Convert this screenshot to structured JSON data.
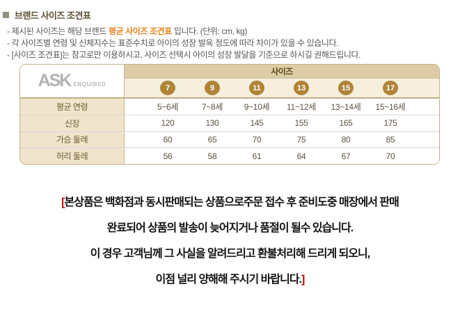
{
  "header": {
    "title": "브랜드 사이즈 조견표",
    "bullet1_pre": "- 제시된 사이즈는 해당 브랜드 ",
    "bullet1_highlight": "평균 사이즈 조견표",
    "bullet1_post": " 입니다.  (단위: cm, kg)",
    "bullet2": "- 각 사이즈별 연령 및 신체지수는 표준수치로 아이의 성장 발육 정도에 따라 차이가 있을 수 있습니다.",
    "bullet3": "- [사이즈 조견표]는 참고로만 이용하시고, 사이즈 선택시 아이의 성장 발달을 기준으로 하시길 권해드립니다."
  },
  "table": {
    "logo_main": "ASK",
    "logo_sub": "ENQUIRED",
    "size_header": "사이즈",
    "sizes": [
      "7",
      "9",
      "11",
      "13",
      "15",
      "17"
    ],
    "rows": [
      {
        "label": "평균 연령",
        "values": [
          "5~6세",
          "7~8세",
          "9~10세",
          "11~12세",
          "13~14세",
          "15~16세"
        ]
      },
      {
        "label": "신장",
        "values": [
          "120",
          "130",
          "145",
          "155",
          "165",
          "175"
        ]
      },
      {
        "label": "가슴 둘레",
        "values": [
          "60",
          "65",
          "70",
          "75",
          "80",
          "85"
        ]
      },
      {
        "label": "허리 둘레",
        "values": [
          "56",
          "58",
          "61",
          "64",
          "67",
          "70"
        ]
      }
    ]
  },
  "notice": {
    "bracket_open": "[",
    "line1": "본상품은 백화점과 동시판매되는 상품으로주문 접수 후 준비도중 매장에서 판매",
    "line2": "완료되어 상품의 발송이 늦어지거나 품절이 될수 있습니다.",
    "line3": "이 경우 고객님께 그 사실을 알려드리고 환불처리해 드리게 되오니,",
    "line4": "이점 널리 양해해 주시기 바랍니다.",
    "bracket_close": "]"
  },
  "colors": {
    "accent_orange": "#e8821e",
    "bracket_red": "#c00000",
    "badge_gold": "#b08437",
    "table_border": "#c6b28a",
    "size_header_bg": "#ddcda6",
    "badge_row_bg": "#f6efde",
    "label_cell_bg": "#f0e5cc",
    "title_text": "#5c5135",
    "logo_gray": "#b1b1b1"
  }
}
